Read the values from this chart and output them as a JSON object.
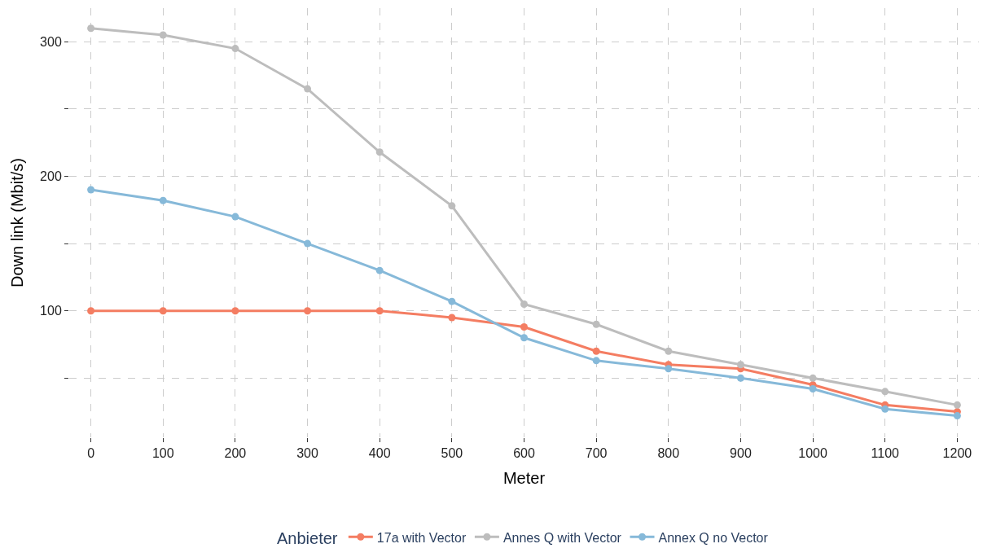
{
  "chart_data": {
    "type": "line",
    "xlabel": "Meter",
    "ylabel": "Down link (Mbit/s)",
    "legend_title": "Anbieter",
    "x": [
      0,
      100,
      200,
      300,
      400,
      500,
      600,
      700,
      800,
      900,
      1000,
      1100,
      1200
    ],
    "series": [
      {
        "name": "17a with Vector",
        "color": "#f47d62",
        "values": [
          100,
          100,
          100,
          100,
          100,
          95,
          88,
          70,
          60,
          57,
          45,
          30,
          25
        ]
      },
      {
        "name": "Annes Q with Vector",
        "color": "#bdbdbd",
        "values": [
          310,
          305,
          295,
          265,
          218,
          178,
          105,
          90,
          70,
          60,
          50,
          40,
          30
        ]
      },
      {
        "name": "Annex Q no Vector",
        "color": "#86b9d9",
        "values": [
          190,
          182,
          170,
          150,
          130,
          107,
          80,
          63,
          57,
          50,
          42,
          27,
          22
        ]
      }
    ],
    "xlim": [
      -30,
      1230
    ],
    "ylim": [
      6,
      325
    ],
    "xticks": [
      0,
      100,
      200,
      300,
      400,
      500,
      600,
      700,
      800,
      900,
      1000,
      1100,
      1200
    ],
    "yticks": [
      {
        "value": 50,
        "label": null
      },
      100,
      {
        "value": 150,
        "label": null
      },
      200,
      {
        "value": 250,
        "label": null
      },
      300
    ],
    "grid": true,
    "legend": "bottom",
    "marker": "circle",
    "line_style": "solid"
  }
}
